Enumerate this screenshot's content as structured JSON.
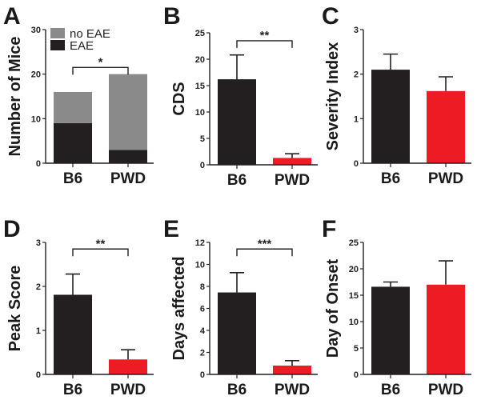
{
  "chart_data": [
    {
      "panel": "A",
      "type": "bar",
      "stacked": true,
      "categories": [
        "B6",
        "PWD"
      ],
      "series": [
        {
          "name": "EAE",
          "values": [
            9,
            3
          ],
          "color": "#231f20"
        },
        {
          "name": "no EAE",
          "values": [
            7,
            17
          ],
          "color": "#8a8a8a"
        }
      ],
      "ylabel": "Number of Mice",
      "ylim": [
        0,
        30
      ],
      "yticks": [
        "0",
        "10",
        "20",
        "30"
      ],
      "legend": [
        "no EAE",
        "EAE"
      ],
      "legend_position": "top-left",
      "significance": {
        "label": "*",
        "y": 21.5
      }
    },
    {
      "panel": "B",
      "type": "bar",
      "categories": [
        "B6",
        "PWD"
      ],
      "values": [
        16.2,
        1.3
      ],
      "errors": [
        4.6,
        0.8
      ],
      "colors": [
        "#231f20",
        "#ed1c24"
      ],
      "ylabel": "CDS",
      "ylim": [
        0,
        25
      ],
      "yticks": [
        "0",
        "5",
        "10",
        "15",
        "20",
        "25"
      ],
      "significance": {
        "label": "**",
        "y": 23.5
      }
    },
    {
      "panel": "C",
      "type": "bar",
      "categories": [
        "B6",
        "PWD"
      ],
      "values": [
        2.1,
        1.62
      ],
      "errors": [
        0.35,
        0.32
      ],
      "colors": [
        "#231f20",
        "#ed1c24"
      ],
      "ylabel": "Severity Index",
      "ylim": [
        0,
        3
      ],
      "yticks": [
        "0",
        "1",
        "2",
        "3"
      ]
    },
    {
      "panel": "D",
      "type": "bar",
      "categories": [
        "B6",
        "PWD"
      ],
      "values": [
        1.81,
        0.34
      ],
      "errors": [
        0.47,
        0.22
      ],
      "colors": [
        "#231f20",
        "#ed1c24"
      ],
      "ylabel": "Peak Score",
      "ylim": [
        0,
        3
      ],
      "yticks": [
        "0",
        "1",
        "2",
        "3"
      ],
      "significance": {
        "label": "**",
        "y": 2.85
      }
    },
    {
      "panel": "E",
      "type": "bar",
      "categories": [
        "B6",
        "PWD"
      ],
      "values": [
        7.45,
        0.8
      ],
      "errors": [
        1.8,
        0.45
      ],
      "colors": [
        "#231f20",
        "#ed1c24"
      ],
      "ylabel": "Days affected",
      "ylim": [
        0,
        12
      ],
      "yticks": [
        "0",
        "2",
        "4",
        "6",
        "8",
        "10",
        "12"
      ],
      "significance": {
        "label": "***",
        "y": 11.4
      }
    },
    {
      "panel": "F",
      "type": "bar",
      "categories": [
        "B6",
        "PWD"
      ],
      "values": [
        16.6,
        17.0
      ],
      "errors": [
        0.9,
        4.5
      ],
      "colors": [
        "#231f20",
        "#ed1c24"
      ],
      "ylabel": "Day of Onset",
      "ylim": [
        0,
        25
      ],
      "yticks": [
        "0",
        "5",
        "10",
        "15",
        "20",
        "25"
      ]
    }
  ]
}
